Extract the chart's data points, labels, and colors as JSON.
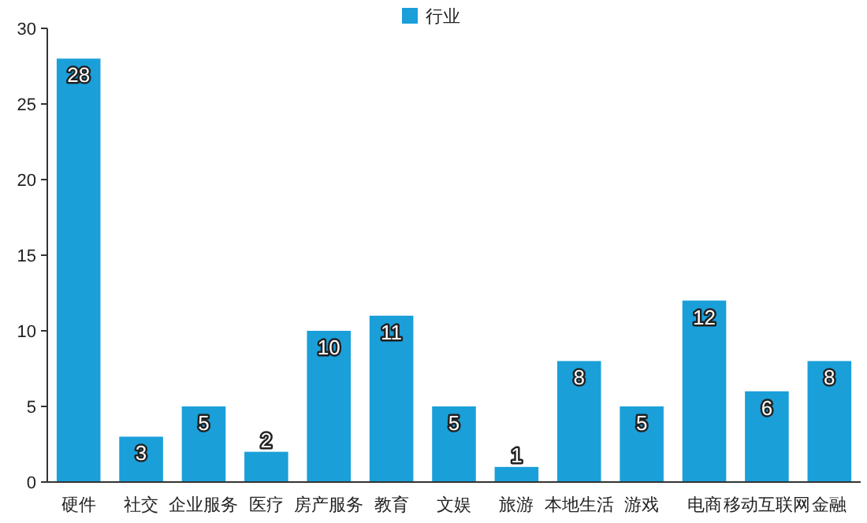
{
  "chart_data": {
    "type": "bar",
    "categories": [
      "硬件",
      "社交",
      "企业服务",
      "医疗",
      "房产服务",
      "教育",
      "文娱",
      "旅游",
      "本地生活",
      "游戏",
      "电商",
      "移动互联网",
      "金融"
    ],
    "series": [
      {
        "name": "行业",
        "color": "#1a9fd9",
        "values": [
          28,
          3,
          5,
          2,
          10,
          11,
          5,
          1,
          8,
          5,
          12,
          6,
          8
        ]
      }
    ],
    "ylim": [
      0,
      30
    ],
    "yticks": [
      0,
      5,
      10,
      15,
      20,
      25,
      30
    ],
    "data_labels": true,
    "legend": "top",
    "grid": false
  }
}
